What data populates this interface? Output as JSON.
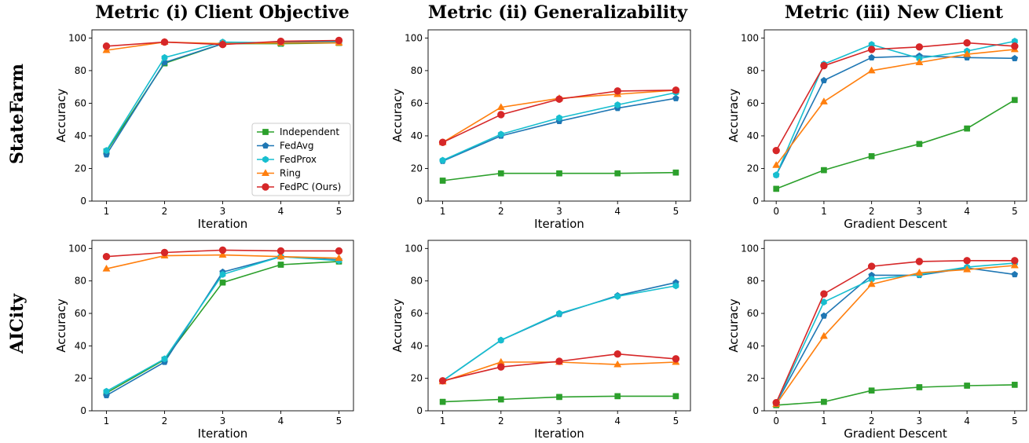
{
  "figure": {
    "column_titles": [
      "Metric (i) Client Objective",
      "Metric (ii) Generalizability",
      "Metric (iii) New Client"
    ],
    "row_titles": [
      "StateFarm",
      "AICity"
    ]
  },
  "series_styles": [
    {
      "name": "Independent",
      "color": "#2ca02c",
      "marker": "square"
    },
    {
      "name": "FedAvg",
      "color": "#1f77b4",
      "marker": "pentagon"
    },
    {
      "name": "FedProx",
      "color": "#17becf",
      "marker": "hexagon"
    },
    {
      "name": "Ring",
      "color": "#ff7f0e",
      "marker": "triangle"
    },
    {
      "name": "FedPC (Ours)",
      "color": "#d62728",
      "marker": "circle"
    }
  ],
  "chart_data": [
    {
      "type": "line",
      "row": "StateFarm",
      "column": "Metric (i) Client Objective",
      "xlabel": "Iteration",
      "ylabel": "Accuracy",
      "x": [
        1,
        2,
        3,
        4,
        5
      ],
      "xlim": [
        0.75,
        5.25
      ],
      "ylim": [
        0,
        105
      ],
      "xticks": [
        "1",
        "2",
        "3",
        "4",
        "5"
      ],
      "yticks": [
        "0",
        "20",
        "40",
        "60",
        "80",
        "100"
      ],
      "legend": "lower-right",
      "grid": false,
      "series": [
        {
          "name": "Independent",
          "values": [
            30.5,
            84.5,
            96.5,
            96.5,
            97.0
          ]
        },
        {
          "name": "FedAvg",
          "values": [
            28.5,
            85.0,
            96.5,
            97.5,
            98.0
          ]
        },
        {
          "name": "FedProx",
          "values": [
            31.0,
            88.0,
            97.5,
            97.0,
            97.5
          ]
        },
        {
          "name": "Ring",
          "values": [
            92.5,
            97.5,
            96.5,
            97.0,
            97.0
          ]
        },
        {
          "name": "FedPC (Ours)",
          "values": [
            95.0,
            97.5,
            96.0,
            98.0,
            98.5
          ]
        }
      ]
    },
    {
      "type": "line",
      "row": "StateFarm",
      "column": "Metric (ii) Generalizability",
      "xlabel": "Iteration",
      "ylabel": "Accuracy",
      "x": [
        1,
        2,
        3,
        4,
        5
      ],
      "xlim": [
        0.75,
        5.25
      ],
      "ylim": [
        0,
        105
      ],
      "xticks": [
        "1",
        "2",
        "3",
        "4",
        "5"
      ],
      "yticks": [
        "0",
        "20",
        "40",
        "60",
        "80",
        "100"
      ],
      "grid": false,
      "series": [
        {
          "name": "Independent",
          "values": [
            12.5,
            17.0,
            17.0,
            17.0,
            17.5
          ]
        },
        {
          "name": "FedAvg",
          "values": [
            24.5,
            40.0,
            49.0,
            57.0,
            63.0
          ]
        },
        {
          "name": "FedProx",
          "values": [
            25.0,
            41.0,
            51.0,
            59.0,
            66.5
          ]
        },
        {
          "name": "Ring",
          "values": [
            36.0,
            57.5,
            63.0,
            65.5,
            68.0
          ]
        },
        {
          "name": "FedPC (Ours)",
          "values": [
            36.0,
            53.0,
            62.5,
            67.5,
            68.0
          ]
        }
      ]
    },
    {
      "type": "line",
      "row": "StateFarm",
      "column": "Metric (iii) New Client",
      "xlabel": "Gradient Descent",
      "ylabel": "Accuracy",
      "x": [
        0,
        1,
        2,
        3,
        4,
        5
      ],
      "xlim": [
        -0.25,
        5.25
      ],
      "ylim": [
        0,
        105
      ],
      "xticks": [
        "0",
        "1",
        "2",
        "3",
        "4",
        "5"
      ],
      "yticks": [
        "0",
        "20",
        "40",
        "60",
        "80",
        "100"
      ],
      "grid": false,
      "series": [
        {
          "name": "Independent",
          "values": [
            7.5,
            19.0,
            27.5,
            35.0,
            44.5,
            62.0
          ]
        },
        {
          "name": "FedAvg",
          "values": [
            16.0,
            74.0,
            88.0,
            89.0,
            88.0,
            87.5
          ]
        },
        {
          "name": "FedProx",
          "values": [
            16.0,
            84.0,
            96.0,
            87.5,
            92.0,
            98.0
          ]
        },
        {
          "name": "Ring",
          "values": [
            22.0,
            61.0,
            80.0,
            85.0,
            90.0,
            93.0
          ]
        },
        {
          "name": "FedPC (Ours)",
          "values": [
            31.0,
            83.0,
            93.0,
            94.5,
            97.0,
            95.0
          ]
        }
      ]
    },
    {
      "type": "line",
      "row": "AICity",
      "column": "Metric (i) Client Objective",
      "xlabel": "Iteration",
      "ylabel": "Accuracy",
      "x": [
        1,
        2,
        3,
        4,
        5
      ],
      "xlim": [
        0.75,
        5.25
      ],
      "ylim": [
        0,
        105
      ],
      "xticks": [
        "1",
        "2",
        "3",
        "4",
        "5"
      ],
      "yticks": [
        "0",
        "20",
        "40",
        "60",
        "80",
        "100"
      ],
      "grid": false,
      "series": [
        {
          "name": "Independent",
          "values": [
            11.0,
            31.5,
            79.0,
            90.0,
            92.0
          ]
        },
        {
          "name": "FedAvg",
          "values": [
            9.5,
            30.0,
            85.5,
            95.0,
            93.0
          ]
        },
        {
          "name": "FedProx",
          "values": [
            12.0,
            32.0,
            84.0,
            95.0,
            92.5
          ]
        },
        {
          "name": "Ring",
          "values": [
            87.5,
            95.5,
            96.0,
            95.0,
            94.0
          ]
        },
        {
          "name": "FedPC (Ours)",
          "values": [
            95.0,
            97.5,
            99.0,
            98.5,
            98.5
          ]
        }
      ]
    },
    {
      "type": "line",
      "row": "AICity",
      "column": "Metric (ii) Generalizability",
      "xlabel": "Iteration",
      "ylabel": "Accuracy",
      "x": [
        1,
        2,
        3,
        4,
        5
      ],
      "xlim": [
        0.75,
        5.25
      ],
      "ylim": [
        0,
        105
      ],
      "xticks": [
        "1",
        "2",
        "3",
        "4",
        "5"
      ],
      "yticks": [
        "0",
        "20",
        "40",
        "60",
        "80",
        "100"
      ],
      "grid": false,
      "series": [
        {
          "name": "Independent",
          "values": [
            5.5,
            7.0,
            8.5,
            9.0,
            9.0
          ]
        },
        {
          "name": "FedAvg",
          "values": [
            18.5,
            43.5,
            59.5,
            71.0,
            79.0
          ]
        },
        {
          "name": "FedProx",
          "values": [
            18.5,
            43.5,
            60.0,
            70.5,
            77.0
          ]
        },
        {
          "name": "Ring",
          "values": [
            18.0,
            30.0,
            30.0,
            28.5,
            30.0
          ]
        },
        {
          "name": "FedPC (Ours)",
          "values": [
            18.5,
            27.0,
            30.5,
            35.0,
            32.0
          ]
        }
      ]
    },
    {
      "type": "line",
      "row": "AICity",
      "column": "Metric (iii) New Client",
      "xlabel": "Gradient Descent",
      "ylabel": "Accuracy",
      "x": [
        0,
        1,
        2,
        3,
        4,
        5
      ],
      "xlim": [
        -0.25,
        5.25
      ],
      "ylim": [
        0,
        105
      ],
      "xticks": [
        "0",
        "1",
        "2",
        "3",
        "4",
        "5"
      ],
      "yticks": [
        "0",
        "20",
        "40",
        "60",
        "80",
        "100"
      ],
      "grid": false,
      "series": [
        {
          "name": "Independent",
          "values": [
            3.5,
            5.5,
            12.5,
            14.5,
            15.5,
            16.0
          ]
        },
        {
          "name": "FedAvg",
          "values": [
            4.5,
            58.5,
            83.5,
            83.5,
            88.0,
            84.0
          ]
        },
        {
          "name": "FedProx",
          "values": [
            4.5,
            67.0,
            81.0,
            84.0,
            88.5,
            91.0
          ]
        },
        {
          "name": "Ring",
          "values": [
            4.0,
            46.0,
            78.0,
            85.0,
            87.0,
            89.5
          ]
        },
        {
          "name": "FedPC (Ours)",
          "values": [
            5.0,
            72.0,
            89.0,
            92.0,
            92.5,
            92.5
          ]
        }
      ]
    }
  ]
}
